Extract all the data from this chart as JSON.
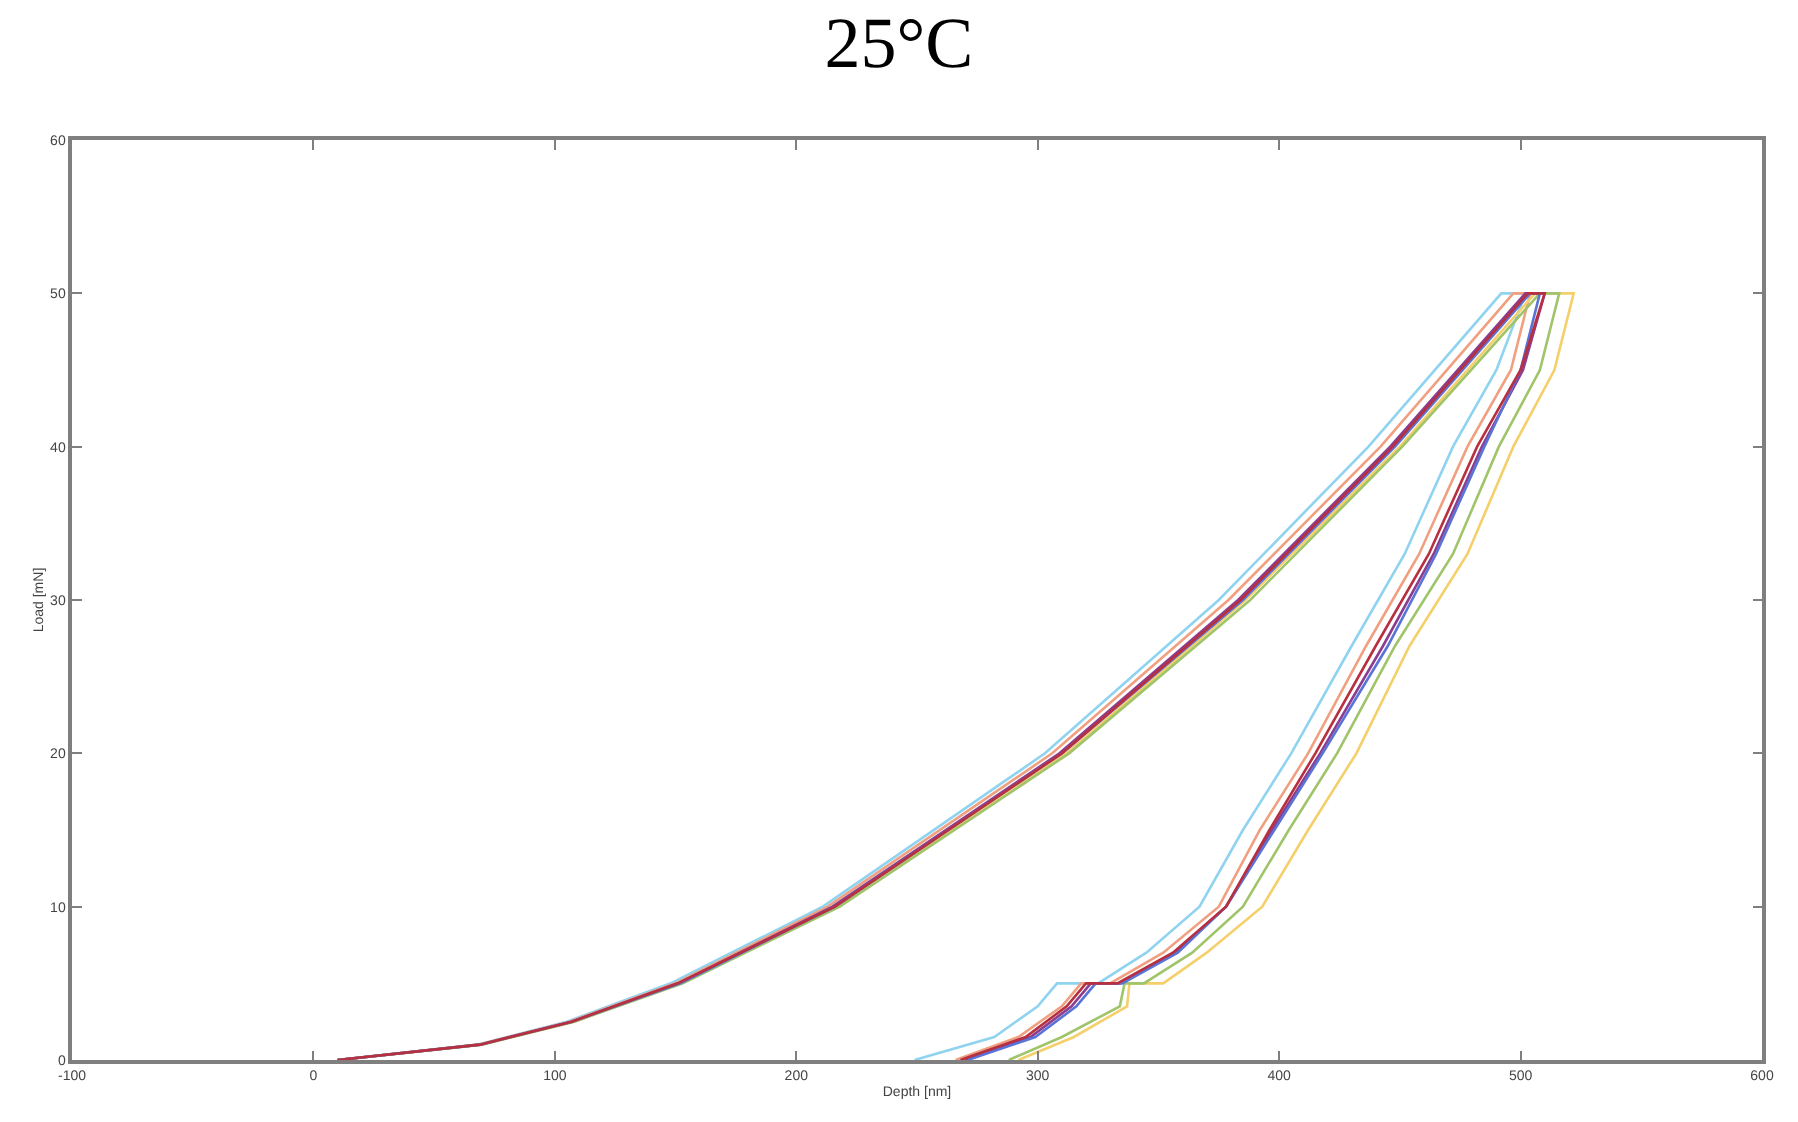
{
  "chart_data": {
    "type": "line",
    "title": "25°C",
    "xlabel": "Depth [nm]",
    "ylabel": "Load [mN]",
    "xlim": [
      -100,
      600
    ],
    "ylim": [
      0,
      60
    ],
    "xticks": [
      -100,
      0,
      100,
      200,
      300,
      400,
      500,
      600
    ],
    "yticks": [
      0,
      10,
      20,
      30,
      40,
      50,
      60
    ],
    "marker": "none",
    "line_style": "solid",
    "series": [
      {
        "color": "#8fd3f0",
        "x": [
          10,
          68,
          105,
          148,
          211,
          303,
          375,
          437,
          492,
          502,
          490,
          472,
          452,
          430,
          405,
          385,
          367,
          345,
          325,
          308,
          300,
          282,
          249
        ],
        "values": [
          0,
          1,
          2.5,
          5,
          10,
          20,
          30,
          40,
          50,
          50,
          45,
          40,
          33,
          27,
          20,
          15,
          10,
          7,
          5,
          5,
          3.5,
          1.5,
          0
        ]
      },
      {
        "color": "#f0a080",
        "x": [
          10,
          68,
          106,
          150,
          213,
          306,
          379,
          442,
          497,
          504,
          496,
          478,
          458,
          436,
          412,
          392,
          375,
          352,
          330,
          318,
          310,
          292,
          266
        ],
        "values": [
          0,
          1,
          2.5,
          5,
          10,
          20,
          30,
          40,
          50,
          50,
          45,
          40,
          33,
          27,
          20,
          15,
          10,
          7,
          5,
          5,
          3.5,
          1.5,
          0
        ]
      },
      {
        "color": "#f5cf6a",
        "x": [
          10,
          69,
          108,
          152,
          217,
          312,
          386,
          450,
          506,
          522,
          514,
          497,
          478,
          454,
          432,
          412,
          393,
          370,
          352,
          338,
          337,
          315,
          292
        ],
        "values": [
          0,
          1,
          2.5,
          5,
          10,
          20,
          30,
          40,
          50,
          50,
          45,
          40,
          33,
          27,
          20,
          15,
          10,
          7,
          5,
          5,
          3.5,
          1.5,
          0
        ]
      },
      {
        "color": "#8b3d8f",
        "x": [
          10,
          69,
          107,
          151,
          215,
          309,
          383,
          446,
          502,
          510,
          501,
          484,
          464,
          443,
          417,
          397,
          378,
          357,
          334,
          322,
          314,
          297,
          270
        ],
        "values": [
          0,
          1,
          2.5,
          5,
          10,
          20,
          30,
          40,
          50,
          50,
          45,
          40,
          33,
          27,
          20,
          15,
          10,
          7,
          5,
          5,
          3.5,
          1.5,
          0
        ]
      },
      {
        "color": "#a0c46a",
        "x": [
          10,
          70,
          108,
          153,
          218,
          313,
          388,
          451,
          508,
          516,
          508,
          491,
          472,
          448,
          424,
          404,
          385,
          364,
          344,
          336,
          334,
          310,
          288
        ],
        "values": [
          0,
          1,
          2.5,
          5,
          10,
          20,
          30,
          40,
          50,
          50,
          45,
          40,
          33,
          27,
          20,
          15,
          10,
          7,
          5,
          5,
          3.5,
          1.5,
          0
        ]
      },
      {
        "color": "#5a73d6",
        "x": [
          10,
          69,
          107,
          152,
          216,
          310,
          385,
          448,
          504,
          508,
          500,
          485,
          465,
          445,
          418,
          398,
          378,
          358,
          335,
          324,
          316,
          299,
          271
        ],
        "values": [
          0,
          1,
          2.5,
          5,
          10,
          20,
          30,
          40,
          50,
          50,
          45,
          40,
          33,
          27,
          20,
          15,
          10,
          7,
          5,
          5,
          3.5,
          1.5,
          0
        ]
      },
      {
        "color": "#b83040",
        "x": [
          10,
          69,
          107,
          151,
          216,
          310,
          384,
          447,
          503,
          510,
          500,
          482,
          462,
          440,
          415,
          396,
          378,
          356,
          333,
          320,
          312,
          295,
          268
        ],
        "values": [
          0,
          1,
          2.5,
          5,
          10,
          20,
          30,
          40,
          50,
          50,
          45,
          40,
          33,
          27,
          20,
          15,
          10,
          7,
          5,
          5,
          3.5,
          1.5,
          0
        ]
      }
    ]
  }
}
